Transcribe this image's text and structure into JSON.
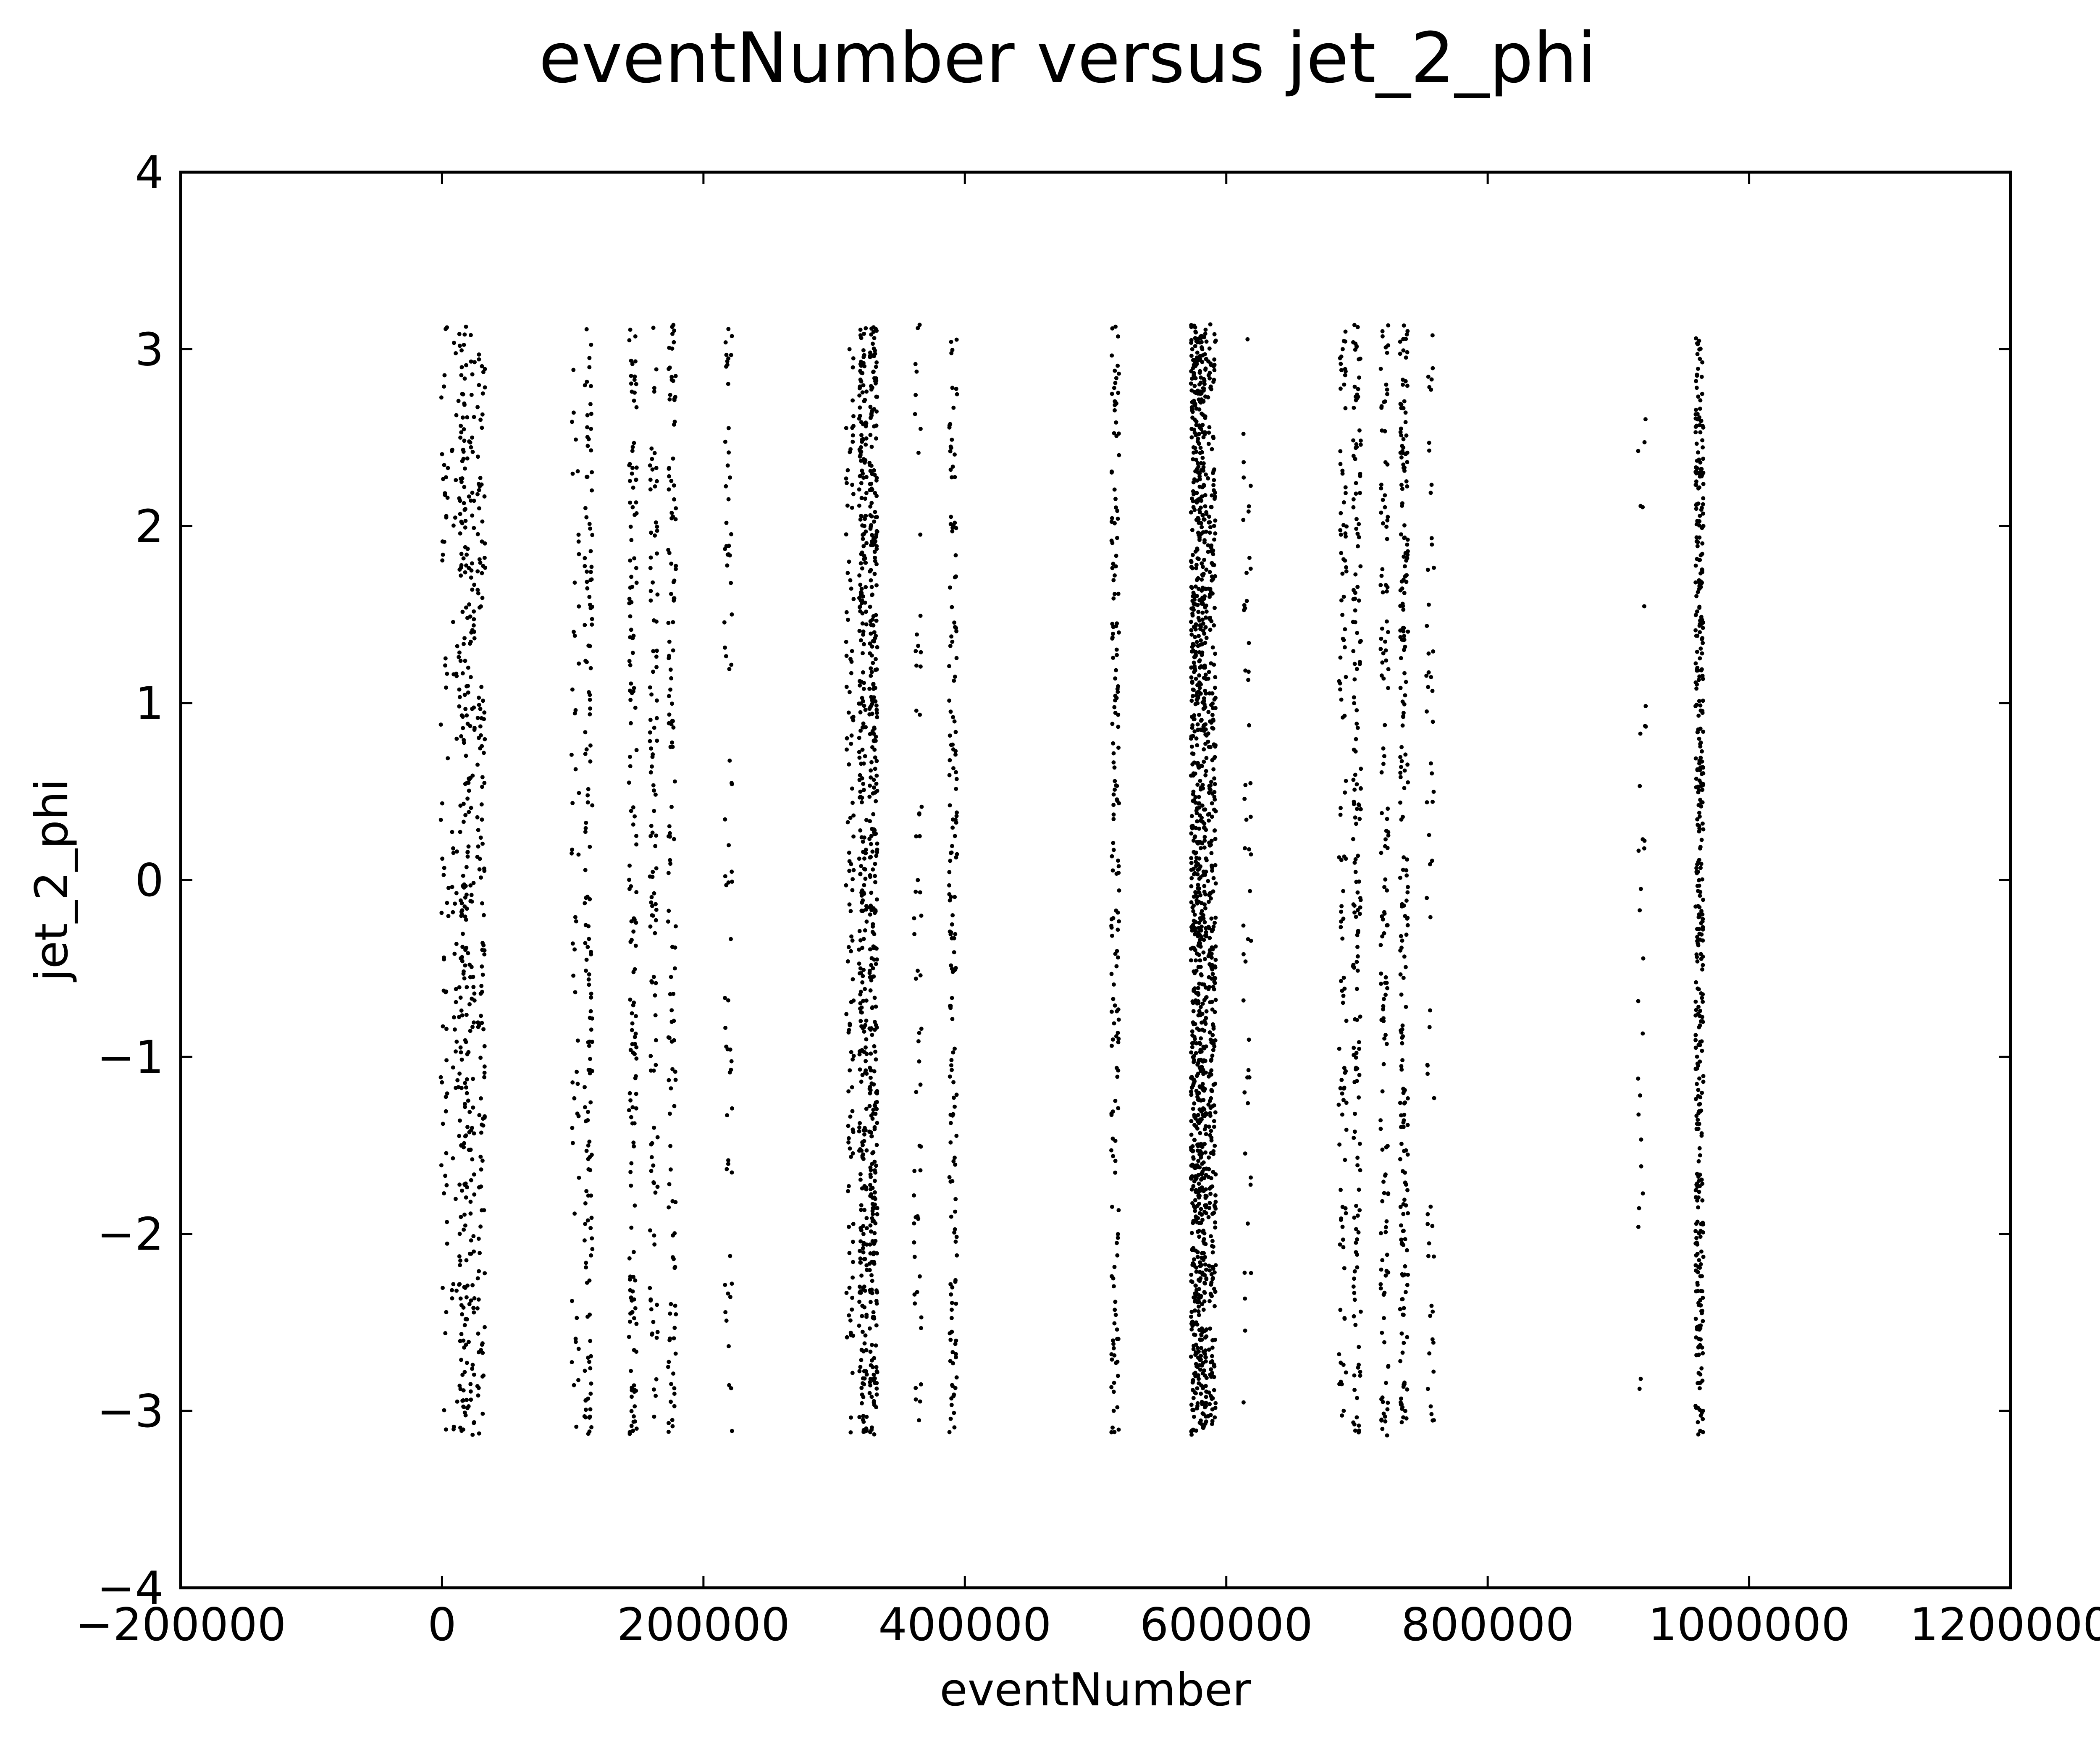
{
  "chart_data": {
    "type": "scatter",
    "title": "eventNumber versus jet_2_phi",
    "xlabel": "eventNumber",
    "ylabel": "jet_2_phi",
    "xlim": [
      -200000,
      1200000
    ],
    "ylim": [
      -4,
      4
    ],
    "xticks": [
      -200000,
      0,
      200000,
      400000,
      600000,
      800000,
      1000000,
      1200000
    ],
    "xtick_labels": [
      "−200000",
      "0",
      "200000",
      "400000",
      "600000",
      "800000",
      "1000000",
      "1200000"
    ],
    "yticks": [
      -4,
      -3,
      -2,
      -1,
      0,
      1,
      2,
      3,
      4
    ],
    "ytick_labels": [
      "−4",
      "−3",
      "−2",
      "−1",
      "0",
      "1",
      "2",
      "3",
      "4"
    ],
    "grid": false,
    "legend": "none",
    "marker_color": "#000000",
    "y_range_of_points": [
      -3.14,
      3.14
    ],
    "event_clusters": [
      {
        "x": 2000,
        "count": 60
      },
      {
        "x": 10000,
        "count": 45
      },
      {
        "x": 16000,
        "count": 180
      },
      {
        "x": 22000,
        "count": 130
      },
      {
        "x": 30000,
        "count": 130
      },
      {
        "x": 102000,
        "count": 50
      },
      {
        "x": 112000,
        "count": 150
      },
      {
        "x": 146000,
        "count": 160
      },
      {
        "x": 162000,
        "count": 110
      },
      {
        "x": 176000,
        "count": 130
      },
      {
        "x": 219000,
        "count": 70
      },
      {
        "x": 312000,
        "count": 110
      },
      {
        "x": 322000,
        "count": 320
      },
      {
        "x": 330000,
        "count": 380
      },
      {
        "x": 364000,
        "count": 60
      },
      {
        "x": 391000,
        "count": 160
      },
      {
        "x": 515000,
        "count": 170
      },
      {
        "x": 576000,
        "count": 500
      },
      {
        "x": 582000,
        "count": 500
      },
      {
        "x": 589000,
        "count": 320
      },
      {
        "x": 616000,
        "count": 50
      },
      {
        "x": 689000,
        "count": 110
      },
      {
        "x": 700000,
        "count": 170
      },
      {
        "x": 721000,
        "count": 140
      },
      {
        "x": 736000,
        "count": 220
      },
      {
        "x": 756000,
        "count": 60
      },
      {
        "x": 918000,
        "count": 30
      },
      {
        "x": 962000,
        "count": 420
      }
    ]
  }
}
